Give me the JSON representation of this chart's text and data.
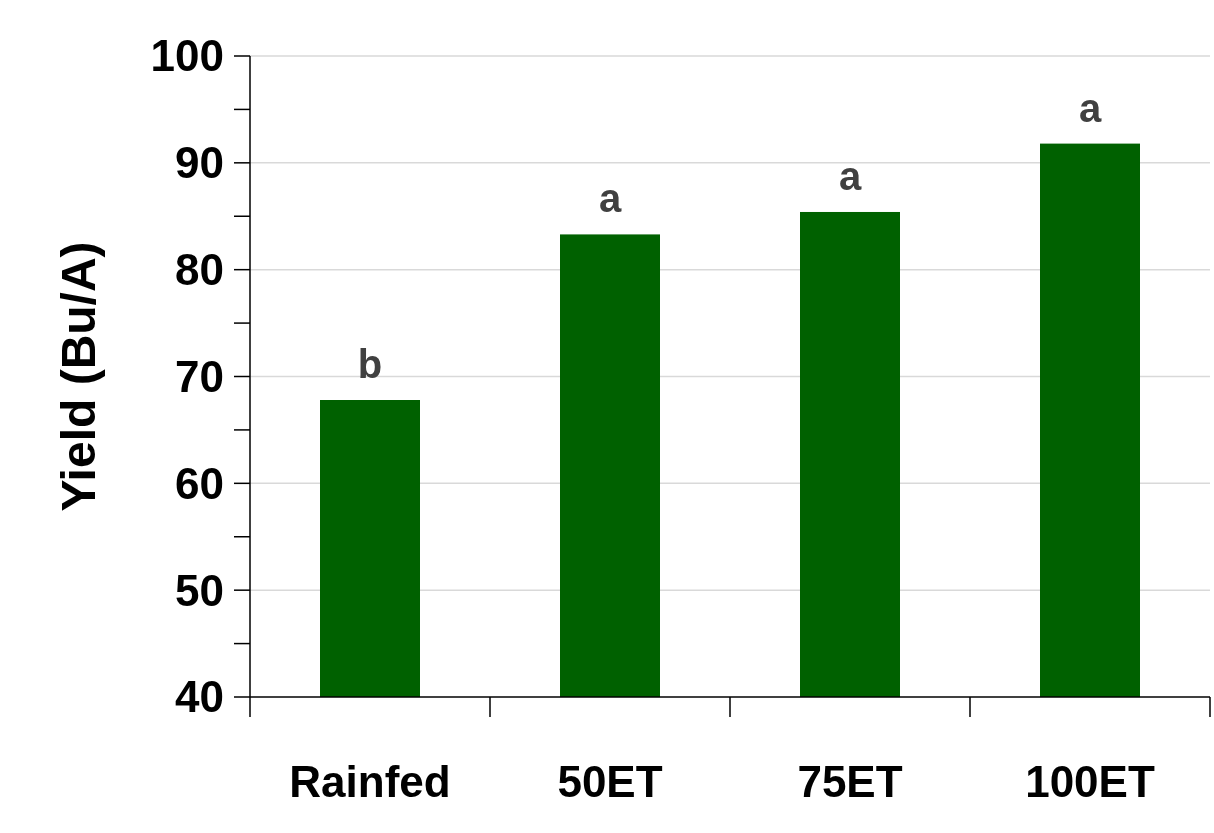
{
  "chart_data": {
    "type": "bar",
    "ylabel": "Yield (Bu/A)",
    "categories": [
      "Rainfed",
      "50ET",
      "75ET",
      "100ET"
    ],
    "values": [
      67.8,
      83.3,
      85.4,
      91.8
    ],
    "color": "#006100",
    "ylim": [
      40,
      100
    ],
    "yticks": [
      40,
      {
        "value": 45,
        "label": null
      },
      50,
      {
        "value": 55,
        "label": null
      },
      60,
      {
        "value": 65,
        "label": null
      },
      70,
      {
        "value": 75,
        "label": null
      },
      80,
      {
        "value": 85,
        "label": null
      },
      90,
      {
        "value": 95,
        "label": null
      },
      100
    ],
    "grid": "y",
    "annotations": [
      {
        "text": "b",
        "x": "Rainfed",
        "y": 67.8
      },
      {
        "text": "a",
        "x": "50ET",
        "y": 83.3
      },
      {
        "text": "a",
        "x": "75ET",
        "y": 85.4
      },
      {
        "text": "a",
        "x": "100ET",
        "y": 91.8
      }
    ]
  }
}
